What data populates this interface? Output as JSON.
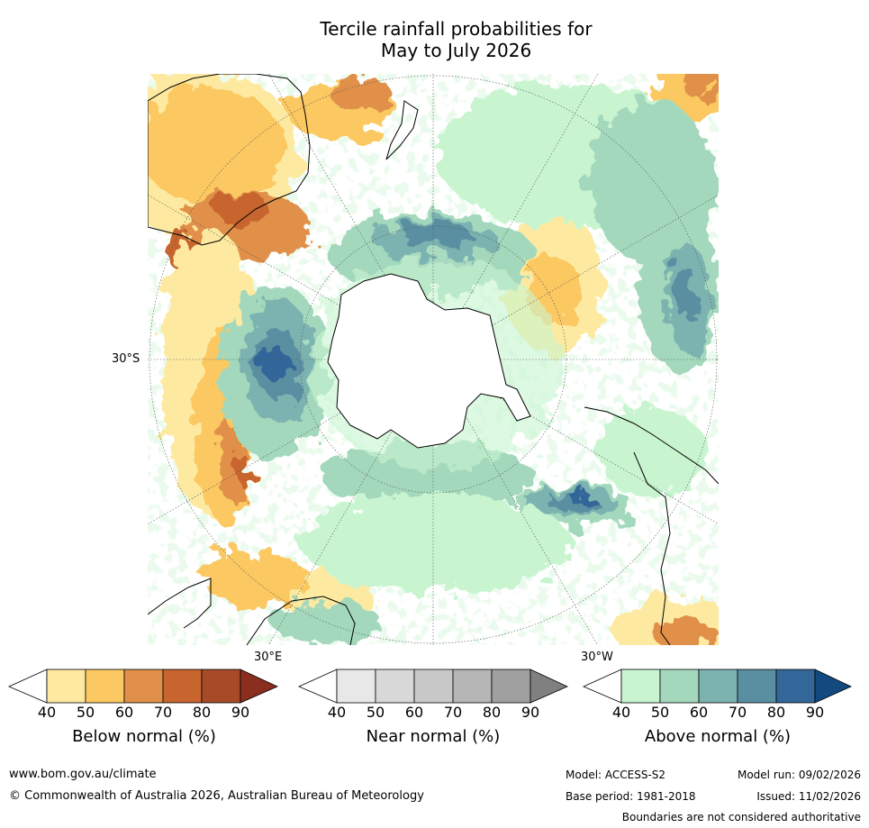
{
  "title_line1": "Tercile rainfall probabilities for",
  "title_line2": "May to July 2026",
  "map": {
    "lat_label": "30°S",
    "lon_label_east": "30°E",
    "lon_label_west": "30°W",
    "ocean_color": "#ffffff",
    "land_outline_color": "#000000"
  },
  "colorbars": [
    {
      "label": "Below normal (%)",
      "ticks": [
        "40",
        "50",
        "60",
        "70",
        "80",
        "90"
      ],
      "colors": [
        "#ffffff",
        "#fdeaa0",
        "#fbc862",
        "#e0904a",
        "#c8652f",
        "#a64a27",
        "#8a2e1f"
      ]
    },
    {
      "label": "Near normal (%)",
      "ticks": [
        "40",
        "50",
        "60",
        "70",
        "80",
        "90"
      ],
      "colors": [
        "#ffffff",
        "#e8e8e8",
        "#d8d8d8",
        "#c8c8c8",
        "#b5b5b5",
        "#a0a0a0",
        "#808080"
      ]
    },
    {
      "label": "Above normal (%)",
      "ticks": [
        "40",
        "50",
        "60",
        "70",
        "80",
        "90"
      ],
      "colors": [
        "#ffffff",
        "#c8f5d0",
        "#a4d8bc",
        "#7cb3b0",
        "#5a8fa2",
        "#336699",
        "#124a80"
      ]
    }
  ],
  "footer": {
    "website": "www.bom.gov.au/climate",
    "copyright": "© Commonwealth of Australia 2026, Australian Bureau of Meteorology",
    "model": "Model: ACCESS-S2",
    "base_period": "Base period: 1981-2018",
    "model_run": "Model run: 09/02/2026",
    "issued": "Issued: 11/02/2026",
    "boundaries_note": "Boundaries are not considered authoritative"
  }
}
